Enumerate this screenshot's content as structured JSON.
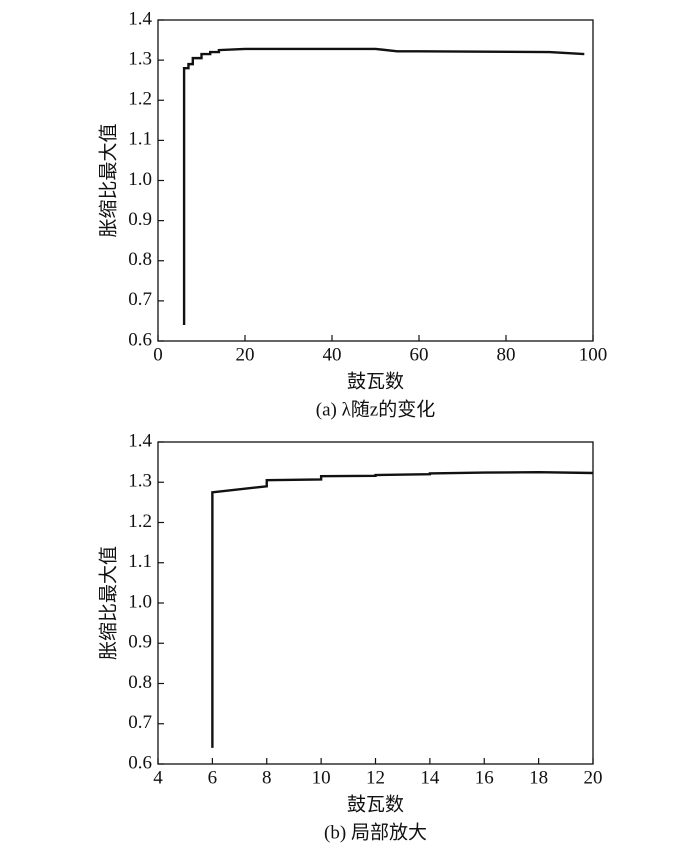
{
  "chart_data": [
    {
      "type": "line",
      "caption": "(a) λ随z的变化",
      "xlabel": "鼓瓦数",
      "ylabel": "胀缩比最大值",
      "x": [
        6,
        6,
        7,
        7,
        8,
        8,
        10,
        10,
        12,
        12,
        14,
        14,
        20,
        50,
        55,
        60,
        90,
        98
      ],
      "values": [
        0.64,
        1.28,
        1.28,
        1.29,
        1.29,
        1.305,
        1.305,
        1.315,
        1.315,
        1.32,
        1.32,
        1.325,
        1.328,
        1.328,
        1.322,
        1.322,
        1.32,
        1.315
      ],
      "color": "#111111",
      "xlim": [
        0,
        100
      ],
      "xticks": [
        0,
        20,
        40,
        60,
        80,
        100
      ],
      "ylim": [
        0.6,
        1.4
      ],
      "yticks": [
        0.6,
        0.7,
        0.8,
        0.9,
        {
          "value": 1,
          "label": "1.0"
        },
        1.1,
        1.2,
        1.3,
        1.4
      ]
    },
    {
      "type": "line",
      "caption": "(b) 局部放大",
      "xlabel": "鼓瓦数",
      "ylabel": "胀缩比最大值",
      "x": [
        6,
        6,
        8,
        8,
        10,
        10,
        12,
        12,
        14,
        14,
        16,
        18,
        20
      ],
      "values": [
        0.64,
        1.275,
        1.29,
        1.305,
        1.307,
        1.315,
        1.316,
        1.318,
        1.32,
        1.322,
        1.324,
        1.325,
        1.323
      ],
      "color": "#111111",
      "xlim": [
        4,
        20
      ],
      "xticks": [
        4,
        6,
        8,
        10,
        12,
        14,
        16,
        18,
        20
      ],
      "ylim": [
        0.6,
        1.4
      ],
      "yticks": [
        0.6,
        0.7,
        0.8,
        0.9,
        {
          "value": 1,
          "label": "1.0"
        },
        1.1,
        1.2,
        1.3,
        1.4
      ]
    }
  ]
}
